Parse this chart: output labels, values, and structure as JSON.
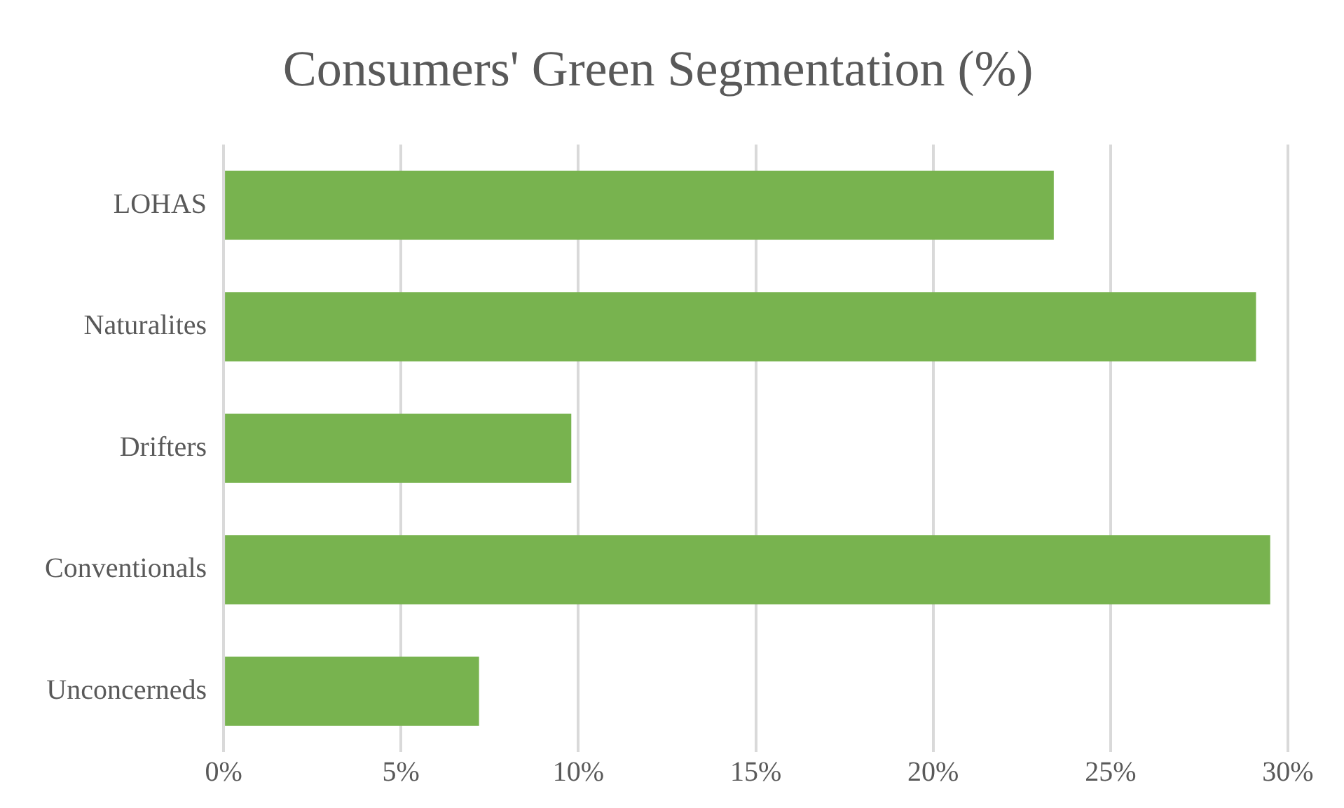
{
  "chart_data": {
    "type": "bar",
    "orientation": "horizontal",
    "title": "Consumers' Green Segmentation (%)",
    "categories": [
      "LOHAS",
      "Naturalites",
      "Drifters",
      "Conventionals",
      "Unconcerneds"
    ],
    "values": [
      23.4,
      29.1,
      9.8,
      29.5,
      7.2
    ],
    "color": "#78b34f",
    "xlim": [
      0,
      30
    ],
    "xticks": [
      {
        "value": 0,
        "label": "0%"
      },
      {
        "value": 5,
        "label": "5%"
      },
      {
        "value": 10,
        "label": "10%"
      },
      {
        "value": 15,
        "label": "15%"
      },
      {
        "value": 20,
        "label": "20%"
      },
      {
        "value": 25,
        "label": "25%"
      },
      {
        "value": 30,
        "label": "30%"
      }
    ],
    "grid": "x",
    "legend": false
  }
}
